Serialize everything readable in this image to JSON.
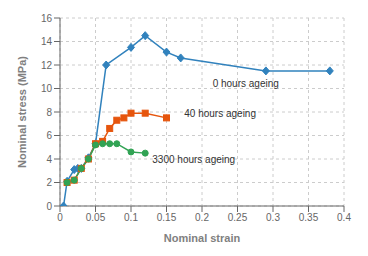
{
  "chart_data": {
    "type": "line",
    "x_label": "Nominal strain",
    "y_label": "Nominal stress (MPa)",
    "xlim": [
      0,
      0.4
    ],
    "ylim": [
      0,
      16
    ],
    "xticks": [
      0,
      0.05,
      0.1,
      0.15,
      0.2,
      0.25,
      0.3,
      0.35,
      0.4
    ],
    "yticks": [
      0,
      2,
      4,
      6,
      8,
      10,
      12,
      14,
      16
    ],
    "grid": true,
    "series": [
      {
        "marker": "diamond",
        "x": [
          0.005,
          0.01,
          0.02,
          0.025,
          0.03,
          0.04,
          0.05,
          0.065,
          0.1,
          0.12,
          0.15,
          0.17,
          0.29,
          0.38
        ],
        "values": [
          0.0,
          2.1,
          3.1,
          3.2,
          3.2,
          4.1,
          5.3,
          12.0,
          13.5,
          14.5,
          13.1,
          12.6,
          11.5,
          11.5
        ]
      },
      {
        "marker": "square",
        "x": [
          0.01,
          0.02,
          0.03,
          0.04,
          0.05,
          0.06,
          0.07,
          0.08,
          0.09,
          0.1,
          0.12,
          0.15
        ],
        "values": [
          2.0,
          2.2,
          3.2,
          4.0,
          5.3,
          5.5,
          6.6,
          7.3,
          7.5,
          7.9,
          7.9,
          7.5
        ]
      },
      {
        "marker": "circle",
        "x": [
          0.01,
          0.02,
          0.03,
          0.04,
          0.05,
          0.06,
          0.07,
          0.08,
          0.1,
          0.12
        ],
        "values": [
          2.0,
          2.2,
          3.2,
          4.0,
          5.2,
          5.3,
          5.3,
          5.3,
          4.6,
          4.5
        ]
      }
    ],
    "annotations": [
      {
        "text": "0 hours ageing",
        "x": 0.215,
        "y": 10.4
      },
      {
        "text": "40 hours ageing",
        "x": 0.175,
        "y": 7.85
      },
      {
        "text": "3300 hours ageing",
        "x": 0.13,
        "y": 4.0
      }
    ]
  }
}
